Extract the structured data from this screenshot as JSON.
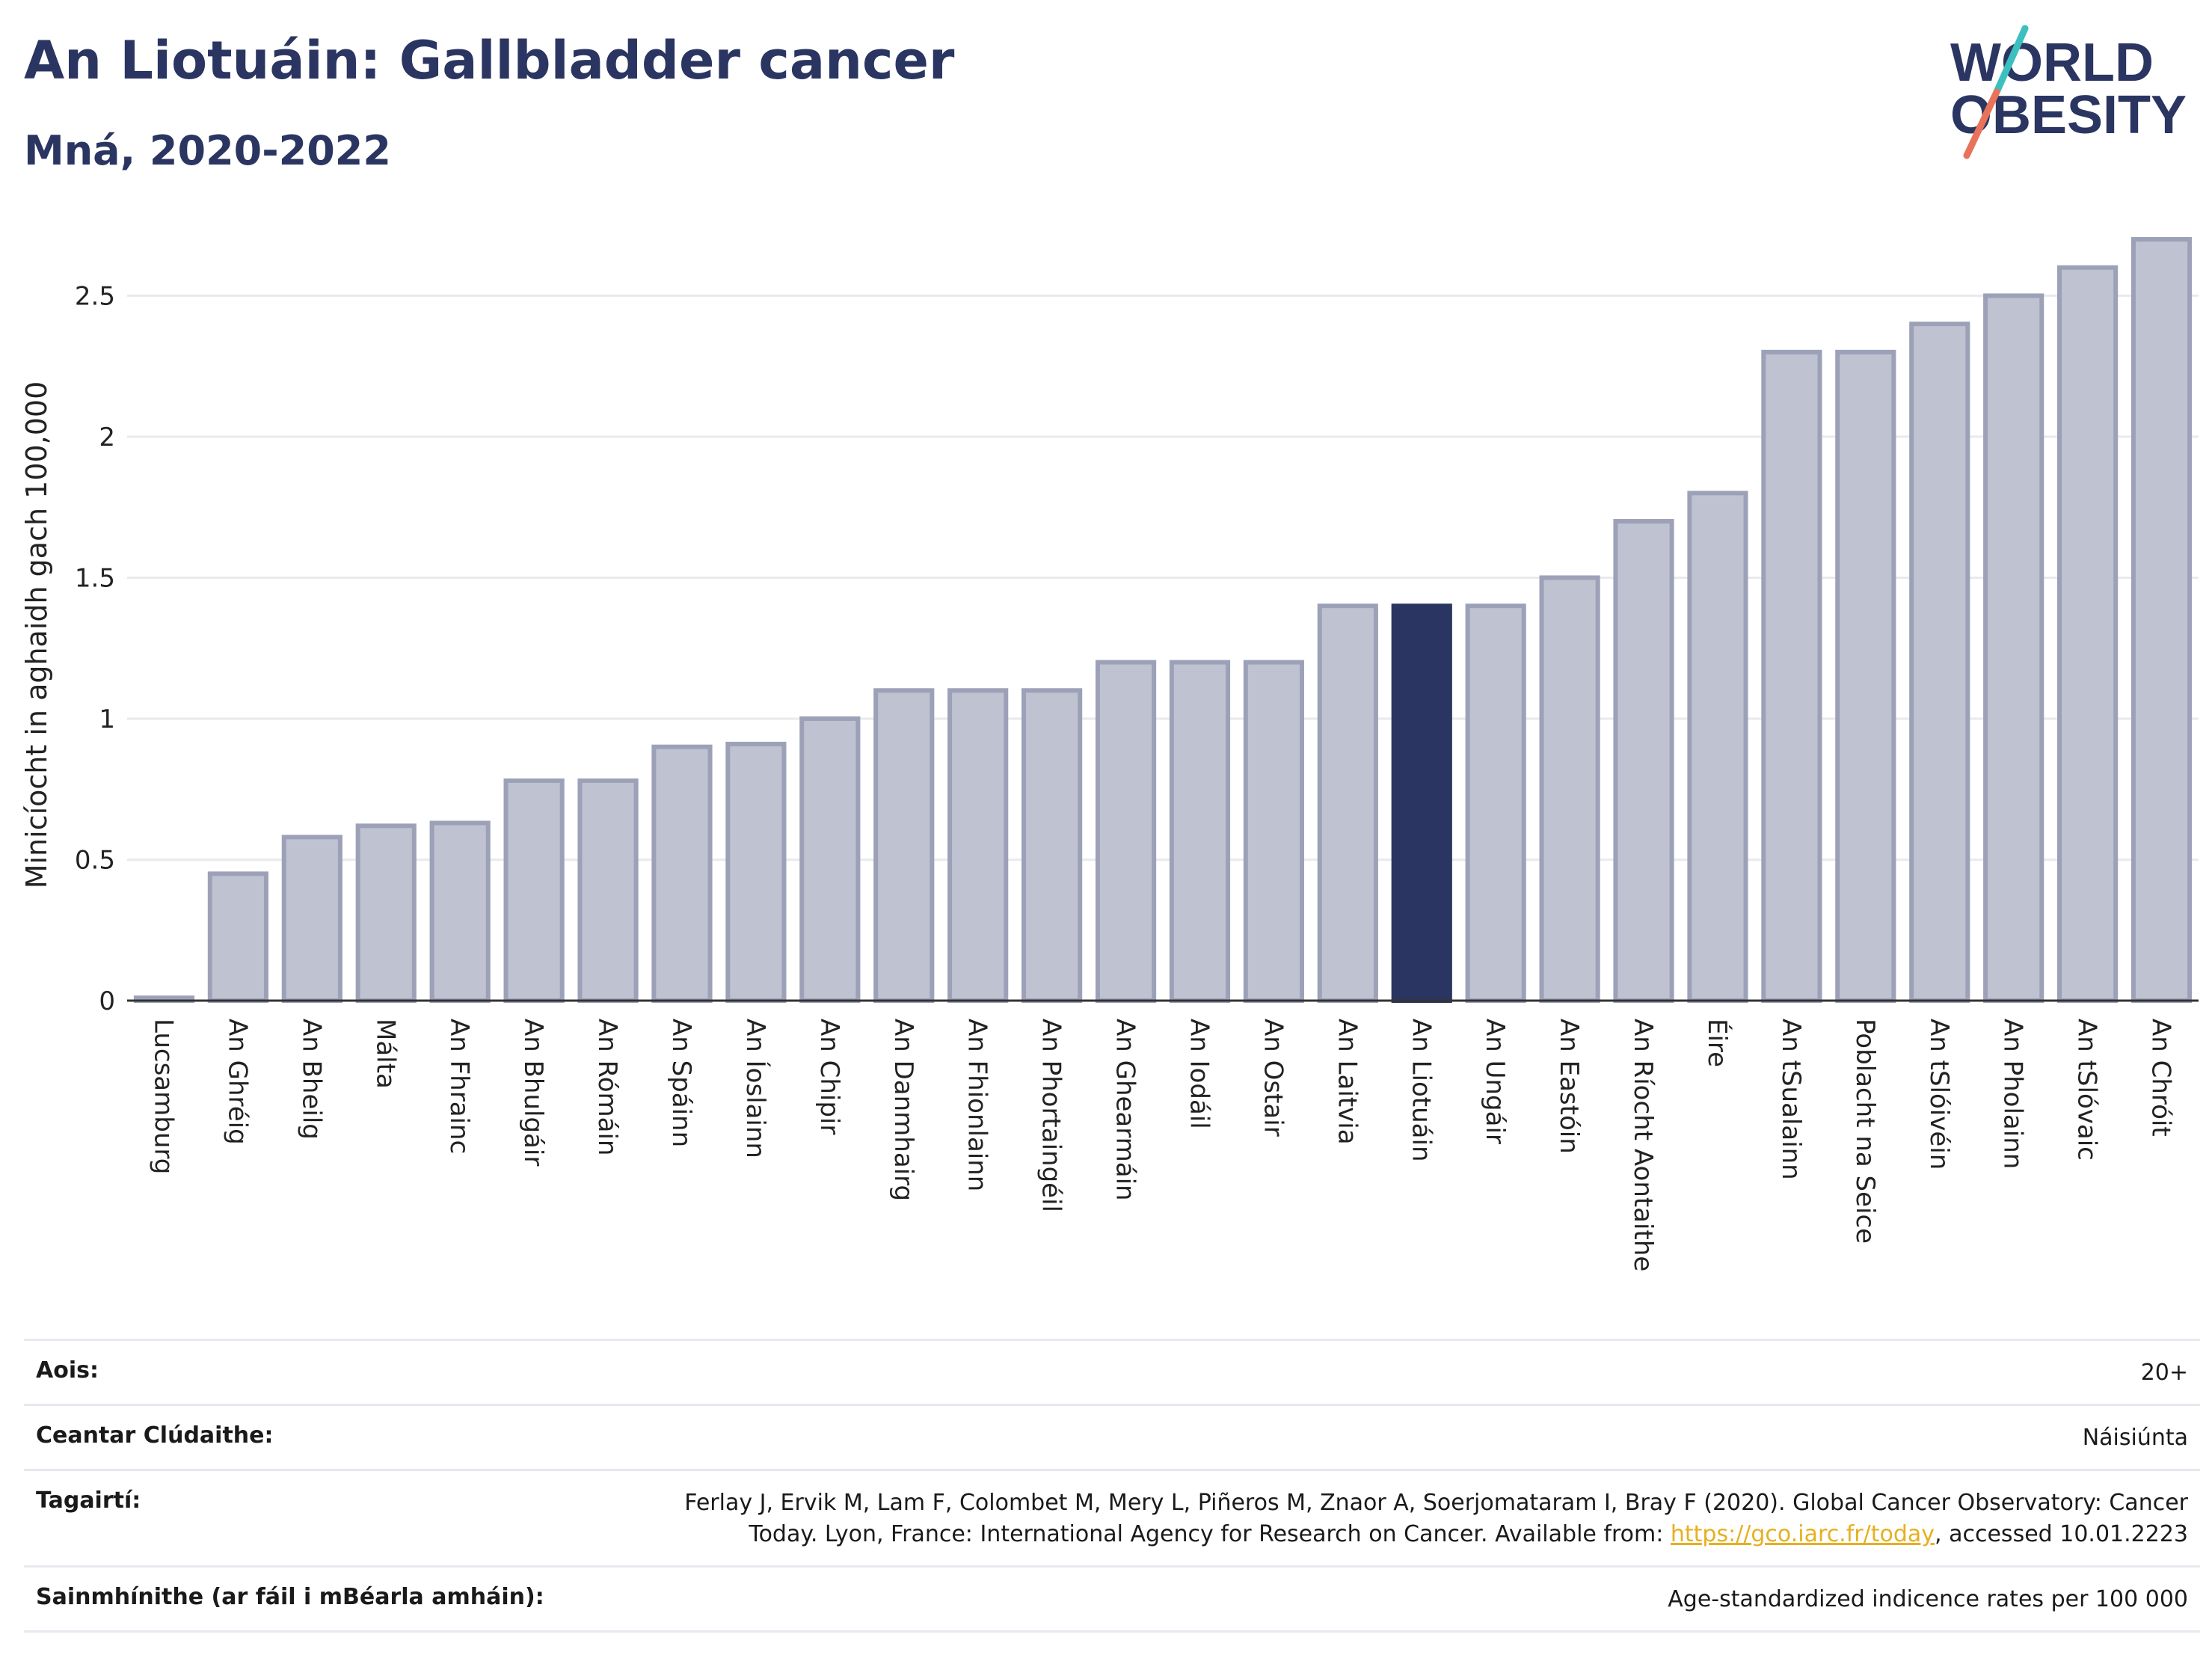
{
  "header": {
    "title": "An Liotuáin: Gallbladder cancer",
    "subtitle": "Mná, 2020-2022"
  },
  "logo": {
    "line1": "WORLD",
    "line2": "OBESITY",
    "colors": {
      "text": "#2b3561",
      "slash_teal": "#3bbfbf",
      "slash_red": "#e8735a"
    }
  },
  "colors": {
    "bar": "#bfc2d0",
    "bar_border": "#9da1b8",
    "highlight": "#2b3561",
    "grid": "#e8eaee"
  },
  "chart_data": {
    "type": "bar",
    "ylabel": "Minicíocht in aghaidh gach 100,000",
    "ylim": [
      0,
      2.7
    ],
    "yticks": [
      0,
      0.5,
      1,
      1.5,
      2,
      2.5
    ],
    "ytick_labels": [
      "0",
      "0.5",
      "1",
      "1.5",
      "2",
      "2.5"
    ],
    "grid": true,
    "highlight": "An Liotuáin",
    "categories": [
      "Lucsamburg",
      "An Ghréig",
      "An Bheilg",
      "Málta",
      "An Fhrainc",
      "An Bhulgáir",
      "An Rómáin",
      "An Spáinn",
      "An Íoslainn",
      "An Chipir",
      "An Danmhairg",
      "An Fhionlainn",
      "An Phortaingéil",
      "An Ghearmáin",
      "An Iodáil",
      "An Ostair",
      "An Laitvia",
      "An Liotuáin",
      "An Ungáir",
      "An Eastóin",
      "An Ríocht Aontaithe",
      "Éire",
      "An tSualainn",
      "Poblacht na Seice",
      "An tSlóivéin",
      "An Pholainn",
      "An tSlóvaic",
      "An Chróit"
    ],
    "values": [
      0.01,
      0.45,
      0.58,
      0.62,
      0.63,
      0.78,
      0.78,
      0.9,
      0.91,
      1.0,
      1.1,
      1.1,
      1.1,
      1.2,
      1.2,
      1.2,
      1.4,
      1.4,
      1.4,
      1.5,
      1.7,
      1.8,
      2.3,
      2.3,
      2.4,
      2.5,
      2.6,
      2.7
    ]
  },
  "info": {
    "age_label": "Aois:",
    "age_value": "20+",
    "area_label": "Ceantar Clúdaithe:",
    "area_value": "Náisiúnta",
    "ref_label": "Tagairtí:",
    "ref_line1": "Ferlay J, Ervik M, Lam F, Colombet M, Mery L, Piñeros M, Znaor A, Soerjomataram I, Bray F (2020). Global Cancer Observatory: Cancer",
    "ref_line2_pre": "Today. Lyon, France: International Agency for Research on Cancer. Available from: ",
    "ref_link": "https://gco.iarc.fr/today",
    "ref_line2_post": ", accessed 10.01.2223",
    "def_label": "Sainmhínithe (ar fáil i mBéarla amháin):",
    "def_value": "Age-standardized indicence rates per 100 000"
  }
}
